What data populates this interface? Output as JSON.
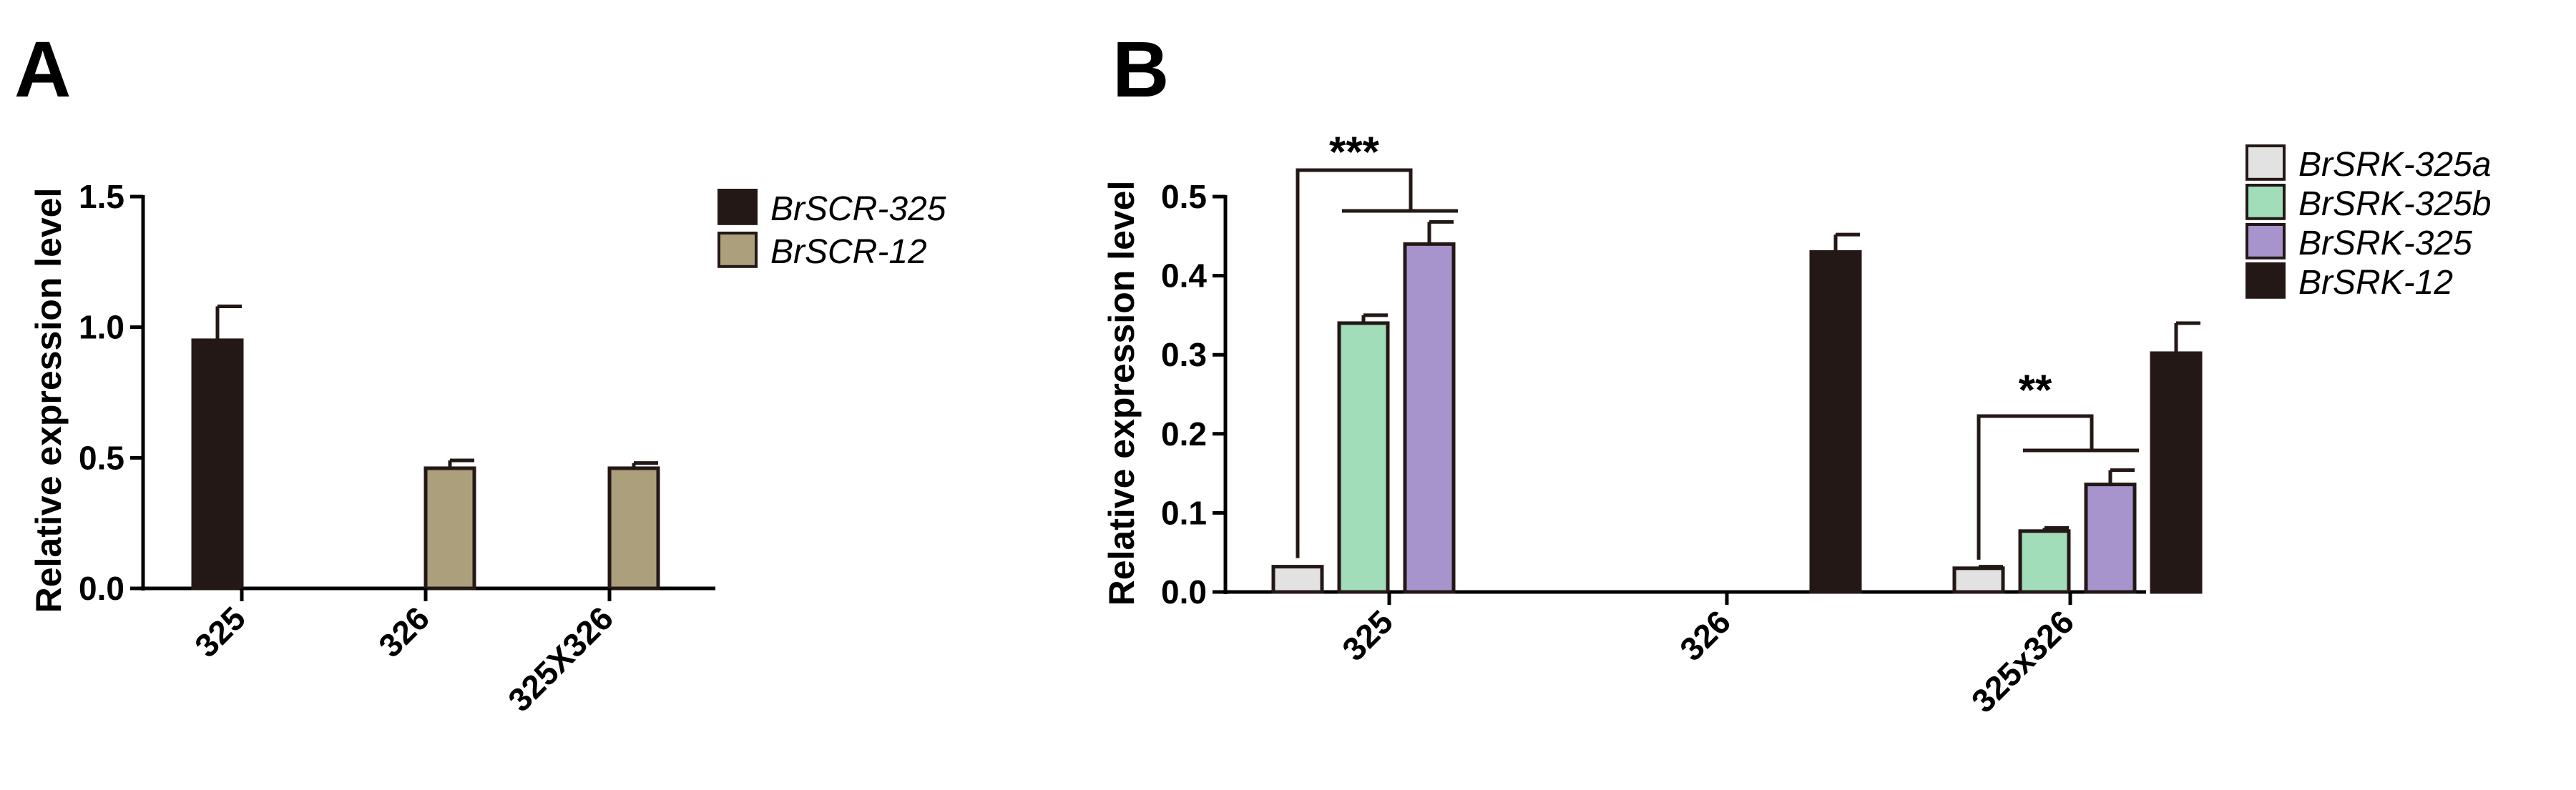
{
  "chart_data": [
    {
      "panel": "A",
      "type": "bar",
      "ylabel": "Relative expression level",
      "ylim": [
        0,
        1.5
      ],
      "yticks": [
        "0.0",
        "0.5",
        "1.0",
        "1.5"
      ],
      "categories": [
        "325",
        "326",
        "325X326"
      ],
      "series": [
        {
          "name": "BrSCR-325",
          "color": "#231816",
          "values": [
            0.95,
            0,
            0
          ],
          "errors": [
            0.13,
            0,
            0
          ]
        },
        {
          "name": "BrSCR-12",
          "color": "#ab9f7c",
          "values": [
            0,
            0.46,
            0.46
          ],
          "errors": [
            0,
            0.03,
            0.02
          ]
        }
      ],
      "legend_position": "top-right",
      "grid": false
    },
    {
      "panel": "B",
      "type": "bar",
      "ylabel": "Relative expression level",
      "ylim": [
        0,
        0.5
      ],
      "yticks": [
        "0.0",
        "0.1",
        "0.2",
        "0.3",
        "0.4",
        "0.5"
      ],
      "categories": [
        "325",
        "326",
        "325x326"
      ],
      "series": [
        {
          "name": "BrSRK-325a",
          "color": "#e2e2e2",
          "values": [
            0.032,
            0,
            0.03
          ],
          "errors": [
            0,
            0,
            0.002
          ]
        },
        {
          "name": "BrSRK-325b",
          "color": "#a1ddb9",
          "values": [
            0.34,
            0,
            0.077
          ],
          "errors": [
            0.01,
            0,
            0.004
          ]
        },
        {
          "name": "BrSRK-325",
          "color": "#a894cd",
          "values": [
            0.44,
            0,
            0.136
          ],
          "errors": [
            0.028,
            0,
            0.018
          ]
        },
        {
          "name": "BrSRK-12",
          "color": "#231816",
          "values": [
            0,
            0.43,
            0.302
          ],
          "errors": [
            0,
            0.022,
            0.038
          ]
        }
      ],
      "annotations": [
        {
          "category": "325",
          "label": "***"
        },
        {
          "category": "325x326",
          "label": "**"
        }
      ],
      "legend_position": "top-right",
      "grid": false
    }
  ]
}
